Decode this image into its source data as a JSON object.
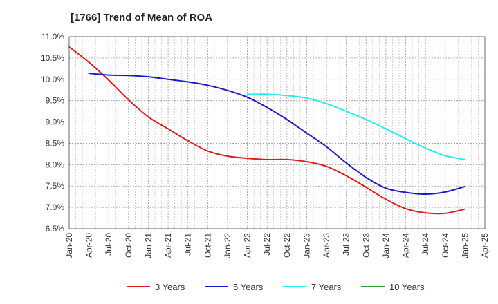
{
  "chart_data": {
    "type": "line",
    "title": "[1766]  Trend of Mean of ROA",
    "xlabel": "",
    "ylabel": "",
    "ylim": [
      6.5,
      11.0
    ],
    "y_ticks": [
      6.5,
      7.0,
      7.5,
      8.0,
      8.5,
      9.0,
      9.5,
      10.0,
      10.5,
      11.0
    ],
    "y_tick_labels": [
      "6.5%",
      "7.0%",
      "7.5%",
      "8.0%",
      "8.5%",
      "9.0%",
      "9.5%",
      "10.0%",
      "10.5%",
      "11.0%"
    ],
    "x_tick_labels": [
      "Jan-20",
      "Apr-20",
      "Jul-20",
      "Oct-20",
      "Jan-21",
      "Apr-21",
      "Jul-21",
      "Oct-21",
      "Jan-22",
      "Apr-22",
      "Jul-22",
      "Oct-22",
      "Jan-23",
      "Apr-23",
      "Jul-23",
      "Oct-23",
      "Jan-24",
      "Apr-24",
      "Jul-24",
      "Oct-24",
      "Jan-25",
      "Apr-25"
    ],
    "grid": true,
    "legend_position": "bottom",
    "series": [
      {
        "name": "3 Years",
        "color": "#e31a1c",
        "points": [
          [
            0,
            10.76
          ],
          [
            1,
            10.4
          ],
          [
            2,
            9.98
          ],
          [
            3,
            9.52
          ],
          [
            4,
            9.12
          ],
          [
            5,
            8.84
          ],
          [
            6,
            8.56
          ],
          [
            7,
            8.32
          ],
          [
            8,
            8.2
          ],
          [
            9,
            8.15
          ],
          [
            10,
            8.12
          ],
          [
            11,
            8.12
          ],
          [
            12,
            8.07
          ],
          [
            13,
            7.96
          ],
          [
            14,
            7.74
          ],
          [
            15,
            7.47
          ],
          [
            16,
            7.19
          ],
          [
            17,
            6.97
          ],
          [
            18,
            6.87
          ],
          [
            19,
            6.86
          ],
          [
            20,
            6.96
          ]
        ]
      },
      {
        "name": "5 Years",
        "color": "#1a1acc",
        "points": [
          [
            1,
            10.14
          ],
          [
            2,
            10.1
          ],
          [
            3,
            10.09
          ],
          [
            4,
            10.06
          ],
          [
            5,
            10.0
          ],
          [
            6,
            9.94
          ],
          [
            7,
            9.86
          ],
          [
            8,
            9.74
          ],
          [
            9,
            9.58
          ],
          [
            10,
            9.34
          ],
          [
            11,
            9.06
          ],
          [
            12,
            8.74
          ],
          [
            13,
            8.42
          ],
          [
            14,
            8.04
          ],
          [
            15,
            7.7
          ],
          [
            16,
            7.45
          ],
          [
            17,
            7.35
          ],
          [
            18,
            7.31
          ],
          [
            19,
            7.36
          ],
          [
            20,
            7.49
          ]
        ]
      },
      {
        "name": "7 Years",
        "color": "#22eeee",
        "points": [
          [
            9,
            9.65
          ],
          [
            10,
            9.65
          ],
          [
            11,
            9.62
          ],
          [
            12,
            9.56
          ],
          [
            13,
            9.43
          ],
          [
            14,
            9.25
          ],
          [
            15,
            9.06
          ],
          [
            16,
            8.84
          ],
          [
            17,
            8.61
          ],
          [
            18,
            8.39
          ],
          [
            19,
            8.21
          ],
          [
            20,
            8.12
          ]
        ]
      },
      {
        "name": "10 Years",
        "color": "#2ca02c",
        "points": []
      }
    ]
  }
}
